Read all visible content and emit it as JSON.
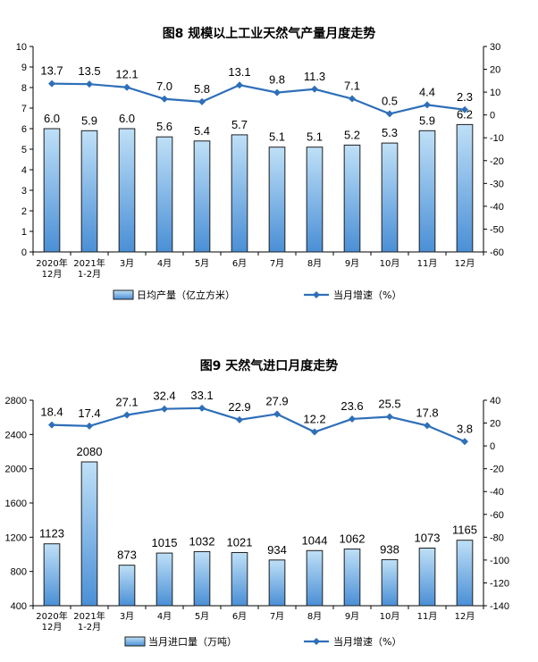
{
  "chart_data": [
    {
      "type": "bar",
      "title": "图8  规模以上工业天然气产量月度走势",
      "categories": [
        [
          "2020年",
          "12月"
        ],
        [
          "2021年",
          "1-2月"
        ],
        [
          "3月"
        ],
        [
          "4月"
        ],
        [
          "5月"
        ],
        [
          "6月"
        ],
        [
          "7月"
        ],
        [
          "8月"
        ],
        [
          "9月"
        ],
        [
          "10月"
        ],
        [
          "11月"
        ],
        [
          "12月"
        ]
      ],
      "series": [
        {
          "name": "日均产量（亿立方米）",
          "type": "bar",
          "axis": "left",
          "values": [
            6.0,
            5.9,
            6.0,
            5.6,
            5.4,
            5.7,
            5.1,
            5.1,
            5.2,
            5.3,
            5.9,
            6.2
          ],
          "labels": [
            "6.0",
            "5.9",
            "6.0",
            "5.6",
            "5.4",
            "5.7",
            "5.1",
            "5.1",
            "5.2",
            "5.3",
            "5.9",
            "6.2"
          ]
        },
        {
          "name": "当月增速（%）",
          "type": "line",
          "axis": "right",
          "values": [
            13.7,
            13.5,
            12.1,
            7.0,
            5.8,
            13.1,
            9.8,
            11.3,
            7.1,
            0.5,
            4.4,
            2.3
          ],
          "labels": [
            "13.7",
            "13.5",
            "12.1",
            "7.0",
            "5.8",
            "13.1",
            "9.8",
            "11.3",
            "7.1",
            "0.5",
            "4.4",
            "2.3"
          ]
        }
      ],
      "ylim_left": [
        0,
        10
      ],
      "yticks_left": [
        "0",
        "1",
        "2",
        "3",
        "4",
        "5",
        "6",
        "7",
        "8",
        "9",
        "10"
      ],
      "ylim_right": [
        -60,
        30
      ],
      "yticks_right": [
        "-60",
        "-50",
        "-40",
        "-30",
        "-20",
        "-10",
        "0",
        "10",
        "20",
        "30"
      ],
      "legend_position": "bottom",
      "grid": false,
      "colors": {
        "bar_top": "#bfe0f7",
        "bar_bottom": "#4a8fd6",
        "bar_stroke": "#1f1f1f",
        "line": "#2e6fb8"
      }
    },
    {
      "type": "bar",
      "title": "图9  天然气进口月度走势",
      "categories": [
        [
          "2020年",
          "12月"
        ],
        [
          "2021年",
          "1-2月"
        ],
        [
          "3月"
        ],
        [
          "4月"
        ],
        [
          "5月"
        ],
        [
          "6月"
        ],
        [
          "7月"
        ],
        [
          "8月"
        ],
        [
          "9月"
        ],
        [
          "10月"
        ],
        [
          "11月"
        ],
        [
          "12月"
        ]
      ],
      "series": [
        {
          "name": "当月进口量（万吨）",
          "type": "bar",
          "axis": "left",
          "values": [
            1123,
            2080,
            873,
            1015,
            1032,
            1021,
            934,
            1044,
            1062,
            938,
            1073,
            1165
          ],
          "labels": [
            "1123",
            "2080",
            "873",
            "1015",
            "1032",
            "1021",
            "934",
            "1044",
            "1062",
            "938",
            "1073",
            "1165"
          ]
        },
        {
          "name": "当月增速（%）",
          "type": "line",
          "axis": "right",
          "values": [
            18.4,
            17.4,
            27.1,
            32.4,
            33.1,
            22.9,
            27.9,
            12.2,
            23.6,
            25.5,
            17.8,
            3.8
          ],
          "labels": [
            "18.4",
            "17.4",
            "27.1",
            "32.4",
            "33.1",
            "22.9",
            "27.9",
            "12.2",
            "23.6",
            "25.5",
            "17.8",
            "3.8"
          ]
        }
      ],
      "ylim_left": [
        400,
        2800
      ],
      "yticks_left": [
        "400",
        "800",
        "1200",
        "1600",
        "2000",
        "2400",
        "2800"
      ],
      "ylim_right": [
        -140,
        40
      ],
      "yticks_right": [
        "-140",
        "-120",
        "-100",
        "-80",
        "-60",
        "-40",
        "-20",
        "0",
        "20",
        "40"
      ],
      "legend_position": "bottom",
      "grid": false,
      "colors": {
        "bar_top": "#bfe0f7",
        "bar_bottom": "#4a8fd6",
        "bar_stroke": "#1f1f1f",
        "line": "#2e6fb8"
      }
    }
  ]
}
